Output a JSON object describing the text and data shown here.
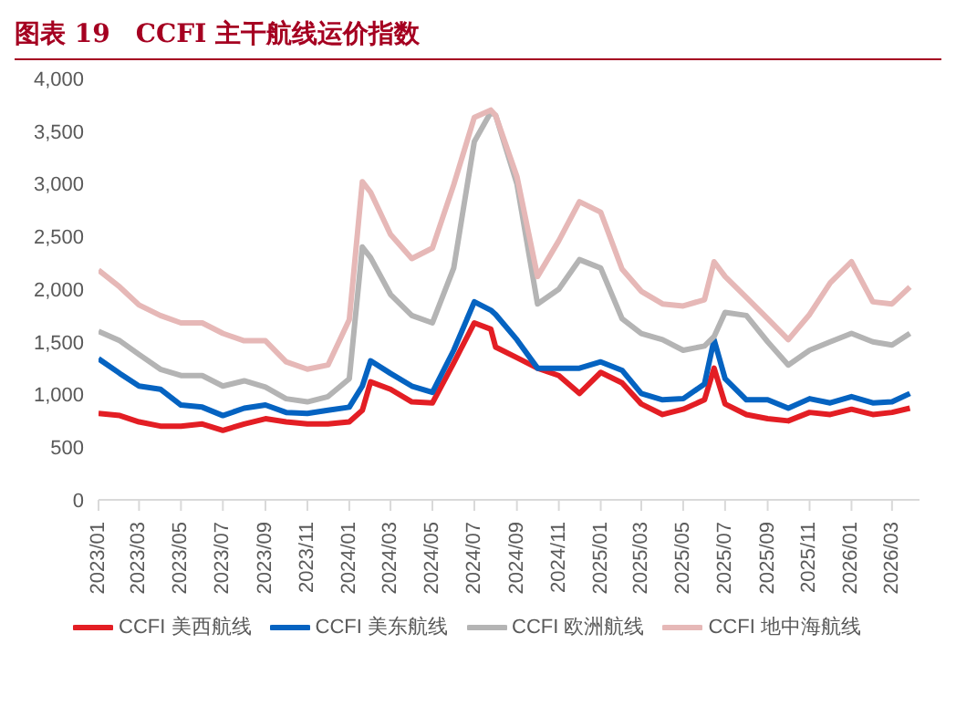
{
  "chart_data": {
    "type": "line",
    "title": "图表 19　CCFI 主干航线运价指数",
    "x": [
      "2023-01-01",
      "2023-02-01",
      "2023-03-01",
      "2023-04-01",
      "2023-05-01",
      "2023-06-01",
      "2023-07-01",
      "2023-08-01",
      "2023-09-01",
      "2023-10-01",
      "2023-11-01",
      "2023-12-01",
      "2024-01-01",
      "2024-01-20",
      "2024-02-01",
      "2024-03-01",
      "2024-04-01",
      "2024-05-01",
      "2024-06-01",
      "2024-07-01",
      "2024-07-25",
      "2024-08-01",
      "2024-09-01",
      "2024-10-01",
      "2024-11-01",
      "2024-12-01",
      "2025-01-01",
      "2025-02-01",
      "2025-03-01",
      "2025-04-01",
      "2025-05-01",
      "2025-06-01",
      "2025-06-15",
      "2025-07-01",
      "2025-08-01",
      "2025-09-01",
      "2025-10-01",
      "2025-11-01",
      "2025-12-01",
      "2026-01-01",
      "2026-02-01",
      "2026-03-01",
      "2026-03-27"
    ],
    "series": [
      {
        "name": "CCFI 美西航线",
        "color": "#e31e24",
        "values": [
          820,
          800,
          740,
          700,
          700,
          720,
          660,
          720,
          770,
          740,
          720,
          720,
          740,
          850,
          1120,
          1050,
          930,
          920,
          1300,
          1680,
          1620,
          1450,
          1350,
          1250,
          1180,
          1010,
          1210,
          1110,
          910,
          810,
          860,
          950,
          1250,
          910,
          810,
          770,
          750,
          830,
          810,
          860,
          810,
          830,
          870
        ]
      },
      {
        "name": "CCFI 美东航线",
        "color": "#0563c1",
        "values": [
          1340,
          1200,
          1080,
          1050,
          900,
          880,
          800,
          870,
          900,
          830,
          820,
          850,
          880,
          1080,
          1320,
          1200,
          1080,
          1020,
          1420,
          1880,
          1800,
          1760,
          1520,
          1250,
          1250,
          1250,
          1310,
          1230,
          1010,
          950,
          960,
          1100,
          1520,
          1150,
          950,
          950,
          870,
          960,
          920,
          980,
          920,
          930,
          1010
        ]
      },
      {
        "name": "CCFI 欧洲航线",
        "color": "#b4b4b4",
        "values": [
          1600,
          1510,
          1380,
          1240,
          1180,
          1180,
          1080,
          1130,
          1070,
          960,
          930,
          980,
          1150,
          2400,
          2300,
          1950,
          1750,
          1680,
          2200,
          3400,
          3680,
          3650,
          3000,
          1860,
          2000,
          2280,
          2200,
          1720,
          1580,
          1520,
          1420,
          1460,
          1550,
          1780,
          1750,
          1500,
          1280,
          1420,
          1500,
          1580,
          1500,
          1470,
          1580
        ]
      },
      {
        "name": "CCFI 地中海航线",
        "color": "#e6b8b7",
        "values": [
          2180,
          2020,
          1850,
          1750,
          1680,
          1680,
          1580,
          1510,
          1510,
          1310,
          1240,
          1280,
          1710,
          3020,
          2920,
          2520,
          2290,
          2390,
          2990,
          3630,
          3700,
          3650,
          3070,
          2120,
          2460,
          2830,
          2730,
          2190,
          1980,
          1860,
          1840,
          1900,
          2260,
          2120,
          1920,
          1720,
          1520,
          1760,
          2060,
          2260,
          1880,
          1860,
          2020
        ]
      }
    ],
    "xlim": [
      "2023-01-01",
      "2026-04-10"
    ],
    "xticks": [
      {
        "value": "2023-01-01",
        "label": "2023/01"
      },
      {
        "value": "2023-03-01",
        "label": "2023/03"
      },
      {
        "value": "2023-05-01",
        "label": "2023/05"
      },
      {
        "value": "2023-07-01",
        "label": "2023/07"
      },
      {
        "value": "2023-09-01",
        "label": "2023/09"
      },
      {
        "value": "2023-11-01",
        "label": "2023/11"
      },
      {
        "value": "2024-01-01",
        "label": "2024/01"
      },
      {
        "value": "2024-03-01",
        "label": "2024/03"
      },
      {
        "value": "2024-05-01",
        "label": "2024/05"
      },
      {
        "value": "2024-07-01",
        "label": "2024/07"
      },
      {
        "value": "2024-09-01",
        "label": "2024/09"
      },
      {
        "value": "2024-11-01",
        "label": "2024/11"
      },
      {
        "value": "2025-01-01",
        "label": "2025/01"
      },
      {
        "value": "2025-03-01",
        "label": "2025/03"
      },
      {
        "value": "2025-05-01",
        "label": "2025/05"
      },
      {
        "value": "2025-07-01",
        "label": "2025/07"
      },
      {
        "value": "2025-09-01",
        "label": "2025/09"
      },
      {
        "value": "2025-11-01",
        "label": "2025/11"
      },
      {
        "value": "2026-01-01",
        "label": "2026/01"
      },
      {
        "value": "2026-03-01",
        "label": "2026/03"
      }
    ],
    "ylim": [
      0,
      4000
    ],
    "yticks": [
      {
        "value": 0,
        "label": "0"
      },
      {
        "value": 500,
        "label": "500"
      },
      {
        "value": 1000,
        "label": "1,000"
      },
      {
        "value": 1500,
        "label": "1,500"
      },
      {
        "value": 2000,
        "label": "2,000"
      },
      {
        "value": 2500,
        "label": "2,500"
      },
      {
        "value": 3000,
        "label": "3,000"
      },
      {
        "value": 3500,
        "label": "3,500"
      },
      {
        "value": 4000,
        "label": "4,000"
      }
    ],
    "grid": false,
    "legend": "bottom",
    "marker": "none",
    "line_style": "solid"
  }
}
